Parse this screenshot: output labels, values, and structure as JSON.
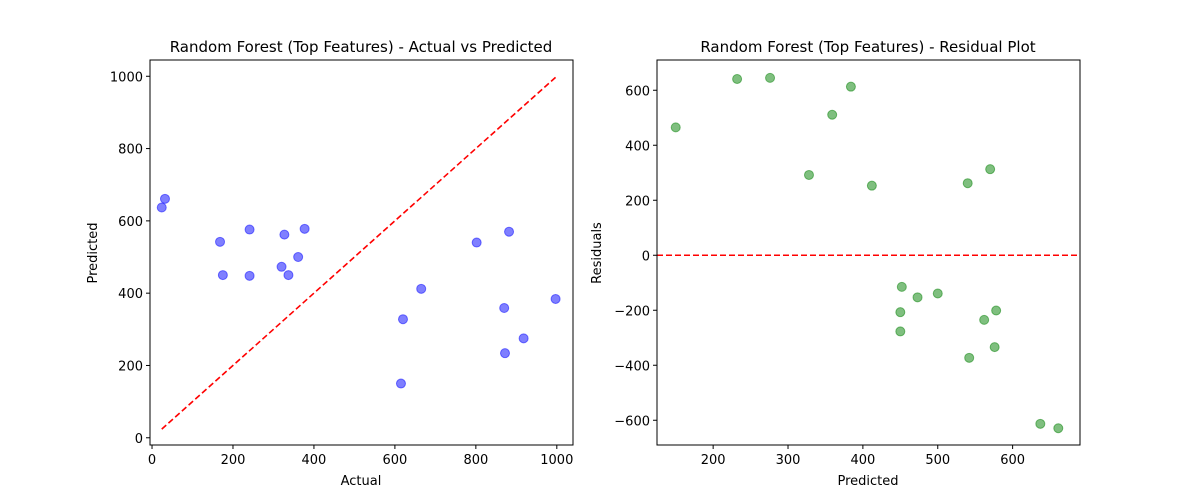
{
  "chart_data": [
    {
      "type": "scatter",
      "title": "Random Forest (Top Features) - Actual vs Predicted",
      "xlabel": "Actual",
      "ylabel": "Predicted",
      "xlim": [
        -5,
        1040
      ],
      "ylim": [
        -20,
        1045
      ],
      "xticks": [
        0,
        200,
        400,
        600,
        800,
        1000
      ],
      "yticks": [
        0,
        200,
        400,
        600,
        800,
        1000
      ],
      "grid": false,
      "point_color": "#0000ff",
      "reference_line": {
        "x": [
          24,
          1000
        ],
        "y": [
          24,
          1000
        ],
        "color": "#ff0000",
        "style": "dashed"
      },
      "points": [
        {
          "x": 24,
          "y": 637
        },
        {
          "x": 32,
          "y": 661
        },
        {
          "x": 168,
          "y": 542
        },
        {
          "x": 175,
          "y": 450
        },
        {
          "x": 241,
          "y": 576
        },
        {
          "x": 241,
          "y": 448
        },
        {
          "x": 320,
          "y": 473
        },
        {
          "x": 327,
          "y": 562
        },
        {
          "x": 337,
          "y": 450
        },
        {
          "x": 361,
          "y": 500
        },
        {
          "x": 377,
          "y": 578
        },
        {
          "x": 615,
          "y": 150
        },
        {
          "x": 620,
          "y": 328
        },
        {
          "x": 665,
          "y": 412
        },
        {
          "x": 802,
          "y": 540
        },
        {
          "x": 870,
          "y": 359
        },
        {
          "x": 872,
          "y": 234
        },
        {
          "x": 882,
          "y": 570
        },
        {
          "x": 918,
          "y": 275
        },
        {
          "x": 997,
          "y": 384
        }
      ]
    },
    {
      "type": "scatter",
      "title": "Random Forest (Top Features) - Residual Plot",
      "xlabel": "Predicted",
      "ylabel": "Residuals",
      "xlim": [
        125,
        690
      ],
      "ylim": [
        -690,
        710
      ],
      "xticks": [
        200,
        300,
        400,
        500,
        600
      ],
      "yticks": [
        -600,
        -400,
        -200,
        0,
        200,
        400,
        600
      ],
      "grid": false,
      "point_color": "#008000",
      "reference_line": {
        "y": 0,
        "color": "#ff0000",
        "style": "dashed"
      },
      "points": [
        {
          "x": 150,
          "y": 465
        },
        {
          "x": 232,
          "y": 641
        },
        {
          "x": 276,
          "y": 645
        },
        {
          "x": 328,
          "y": 292
        },
        {
          "x": 359,
          "y": 511
        },
        {
          "x": 384,
          "y": 613
        },
        {
          "x": 412,
          "y": 253
        },
        {
          "x": 450,
          "y": -207
        },
        {
          "x": 450,
          "y": -277
        },
        {
          "x": 452,
          "y": -115
        },
        {
          "x": 473,
          "y": -153
        },
        {
          "x": 500,
          "y": -139
        },
        {
          "x": 540,
          "y": 262
        },
        {
          "x": 542,
          "y": -373
        },
        {
          "x": 562,
          "y": -235
        },
        {
          "x": 570,
          "y": 313
        },
        {
          "x": 576,
          "y": -334
        },
        {
          "x": 578,
          "y": -201
        },
        {
          "x": 637,
          "y": -613
        },
        {
          "x": 661,
          "y": -629
        }
      ]
    }
  ]
}
